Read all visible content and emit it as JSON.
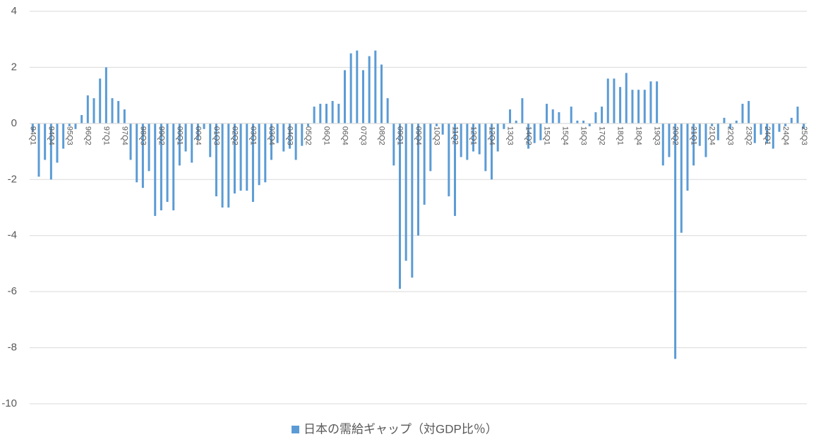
{
  "chart_data": {
    "type": "bar",
    "categories": [
      "94Q1",
      null,
      null,
      "94Q4",
      null,
      null,
      "95Q3",
      null,
      null,
      "96Q2",
      null,
      null,
      "97Q1",
      null,
      null,
      "97Q4",
      null,
      null,
      "98Q3",
      null,
      null,
      "99Q2",
      null,
      null,
      "00Q1",
      null,
      null,
      "00Q4",
      null,
      null,
      "01Q3",
      null,
      null,
      "02Q2",
      null,
      null,
      "03Q1",
      null,
      null,
      "03Q4",
      null,
      null,
      "04Q3",
      null,
      null,
      "05Q2",
      null,
      null,
      "06Q1",
      null,
      null,
      "06Q4",
      null,
      null,
      "07Q3",
      null,
      null,
      "08Q2",
      null,
      null,
      "09Q1",
      null,
      null,
      "09Q4",
      null,
      null,
      "10Q3",
      null,
      null,
      "11Q2",
      null,
      null,
      "12Q1",
      null,
      null,
      "12Q4",
      null,
      null,
      "13Q3",
      null,
      null,
      "14Q2",
      null,
      null,
      "15Q1",
      null,
      null,
      "15Q4",
      null,
      null,
      "16Q3",
      null,
      null,
      "17Q2",
      null,
      null,
      "18Q1",
      null,
      null,
      "18Q4",
      null,
      null,
      "19Q3",
      null,
      null,
      "20Q2",
      null,
      null,
      "21Q1",
      null,
      null,
      "21Q4",
      null,
      null,
      "22Q3",
      null,
      null,
      "23Q2",
      null,
      null,
      "24Q1",
      null,
      null,
      "24Q4",
      null,
      null,
      "25Q3"
    ],
    "series": [
      {
        "name": "日本の需給ギャップ（対GDP比％）",
        "color": "#5b9bd5",
        "values": [
          -0.3,
          -1.9,
          -1.3,
          -2.0,
          -1.4,
          -0.9,
          -0.1,
          -0.2,
          0.3,
          1.0,
          0.9,
          1.6,
          2.0,
          0.9,
          0.8,
          0.5,
          -1.3,
          -2.1,
          -2.3,
          -1.7,
          -3.3,
          -3.1,
          -2.8,
          -3.1,
          -1.5,
          -1.0,
          -1.4,
          -0.6,
          -0.2,
          -1.2,
          -2.6,
          -3.0,
          -3.0,
          -2.5,
          -2.4,
          -2.4,
          -2.8,
          -2.2,
          -2.1,
          -1.3,
          -0.7,
          -1.0,
          -0.9,
          -1.3,
          -0.8,
          -0.1,
          0.6,
          0.7,
          0.7,
          0.8,
          0.7,
          1.9,
          2.5,
          2.6,
          1.9,
          2.4,
          2.6,
          2.1,
          0.9,
          -1.5,
          -5.9,
          -4.9,
          -5.5,
          -4.0,
          -2.9,
          -1.7,
          -0.1,
          -0.4,
          -2.6,
          -3.3,
          -1.2,
          -1.3,
          -1.0,
          -1.1,
          -1.7,
          -2.0,
          -1.0,
          -0.2,
          0.5,
          0.1,
          0.9,
          -0.9,
          -0.7,
          -0.6,
          0.7,
          0.5,
          0.4,
          0.0,
          0.6,
          0.1,
          0.1,
          -0.1,
          0.4,
          0.6,
          1.6,
          1.6,
          1.3,
          1.8,
          1.2,
          1.2,
          1.2,
          1.5,
          1.5,
          -1.5,
          -1.2,
          -8.4,
          -3.9,
          -2.4,
          -1.5,
          -0.8,
          -1.2,
          -0.1,
          -0.6,
          0.2,
          -0.2,
          0.1,
          0.7,
          0.8,
          -0.7,
          -0.4,
          -0.7,
          -0.9,
          -0.3,
          -0.1,
          0.2,
          0.6,
          -0.2
        ]
      }
    ],
    "ylim": [
      -10,
      4
    ],
    "yticks": [
      -10,
      -8,
      -6,
      -4,
      -2,
      0,
      2,
      4
    ],
    "grid": true,
    "legend": "bottom"
  }
}
